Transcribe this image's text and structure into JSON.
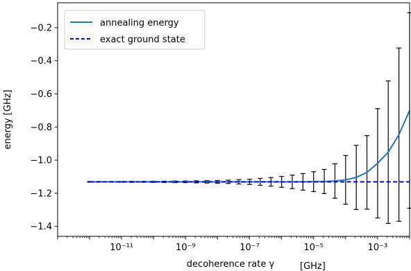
{
  "chart_data": {
    "type": "line",
    "xlabel": "decoherence rate γ",
    "xlabel_unit": "[GHz]",
    "ylabel": "energy [GHz]",
    "xscale": "log",
    "xlim": [
      1e-13,
      0.01
    ],
    "ylim": [
      -1.46,
      -0.05
    ],
    "xticks": [
      {
        "value": 1e-11,
        "label": "10⁻¹¹"
      },
      {
        "value": 1e-09,
        "label": "10⁻⁹"
      },
      {
        "value": 1e-07,
        "label": "10⁻⁷"
      },
      {
        "value": 1e-05,
        "label": "10⁻⁵"
      },
      {
        "value": 0.001,
        "label": "10⁻³"
      }
    ],
    "yticks": [
      {
        "value": -0.2,
        "label": "−0.2"
      },
      {
        "value": -0.4,
        "label": "−0.4"
      },
      {
        "value": -0.6,
        "label": "−0.6"
      },
      {
        "value": -0.8,
        "label": "−0.8"
      },
      {
        "value": -1.0,
        "label": "−1.0"
      },
      {
        "value": -1.2,
        "label": "−1.2"
      },
      {
        "value": -1.4,
        "label": "−1.4"
      }
    ],
    "grid": false,
    "legend_position": "top-left",
    "series": [
      {
        "name": "annealing energy",
        "color": "#1f77b4",
        "style": "solid",
        "x": [
          1e-12,
          2.15e-12,
          4.64e-12,
          1e-11,
          2.15e-11,
          4.64e-11,
          1e-10,
          2.15e-10,
          4.64e-10,
          1e-09,
          2.15e-09,
          4.64e-09,
          1e-08,
          2.15e-08,
          4.64e-08,
          1e-07,
          2.15e-07,
          4.64e-07,
          1e-06,
          2.15e-06,
          4.64e-06,
          1e-05,
          2.15e-05,
          4.64e-05,
          0.0001,
          0.000215,
          0.000464,
          0.001,
          0.00215,
          0.00464,
          0.01
        ],
        "y": [
          -1.131,
          -1.131,
          -1.131,
          -1.131,
          -1.131,
          -1.131,
          -1.131,
          -1.131,
          -1.131,
          -1.131,
          -1.131,
          -1.131,
          -1.131,
          -1.131,
          -1.131,
          -1.131,
          -1.131,
          -1.131,
          -1.131,
          -1.131,
          -1.131,
          -1.13,
          -1.129,
          -1.126,
          -1.119,
          -1.104,
          -1.074,
          -1.019,
          -0.952,
          -0.846,
          -0.7
        ],
        "error": [
          0.002,
          0.002,
          0.002,
          0.003,
          0.003,
          0.003,
          0.004,
          0.004,
          0.005,
          0.005,
          0.006,
          0.007,
          0.008,
          0.01,
          0.013,
          0.016,
          0.021,
          0.026,
          0.033,
          0.041,
          0.05,
          0.06,
          0.073,
          0.104,
          0.147,
          0.194,
          0.222,
          0.33,
          0.43,
          0.523,
          0.59
        ],
        "errorbar_color": "#000000"
      },
      {
        "name": "exact ground state",
        "color": "#0000ff",
        "style": "dashed",
        "x": [
          1e-12,
          0.01
        ],
        "y": [
          -1.131,
          -1.131
        ]
      }
    ]
  }
}
